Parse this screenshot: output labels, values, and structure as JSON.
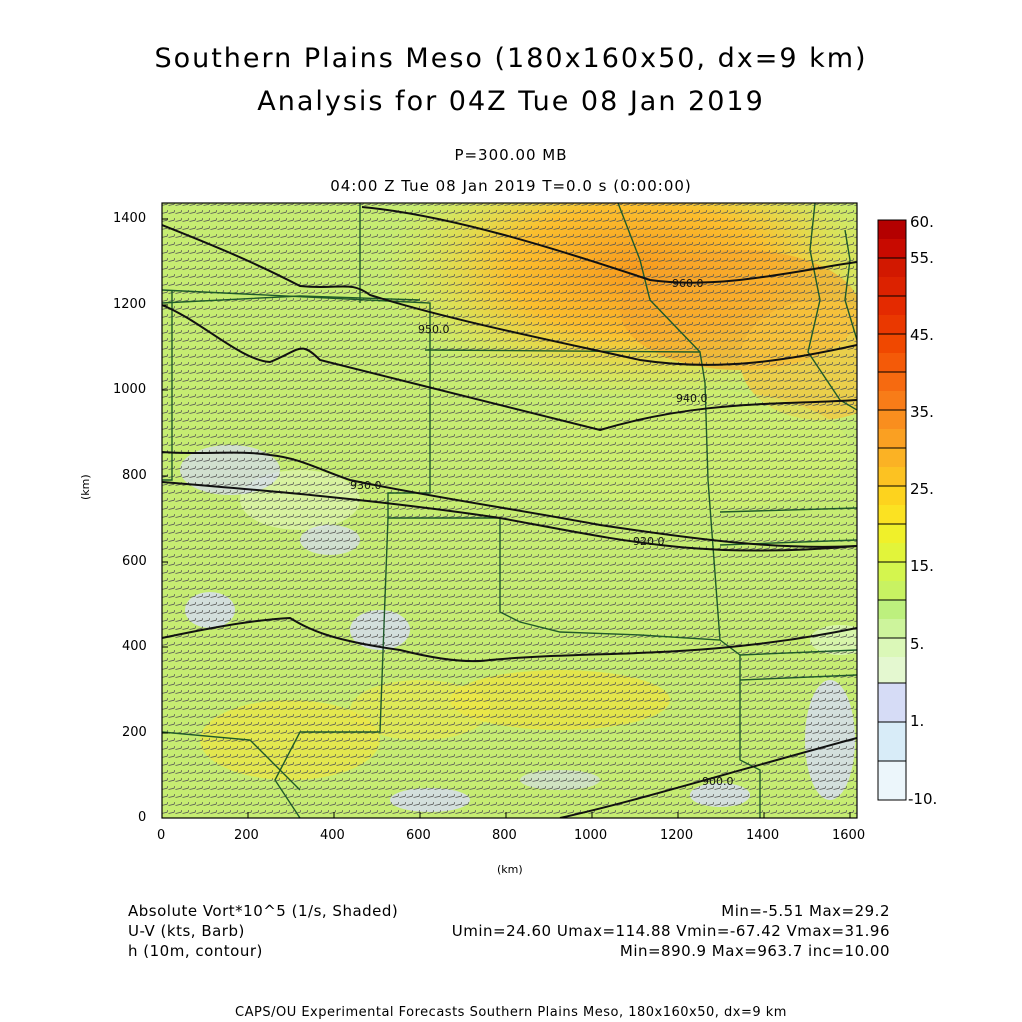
{
  "header": {
    "title_line1": "Southern Plains Meso (180x160x50, dx=9 km)",
    "title_line2": "Analysis for 04Z Tue 08 Jan 2019",
    "level": "P=300.00 MB",
    "time": "04:00 Z Tue 08 Jan 2019    T=0.0 s (0:00:00)"
  },
  "axes": {
    "x_label": "(km)",
    "y_label": "(km)",
    "x_ticks": [
      "0",
      "200",
      "400",
      "600",
      "800",
      "1000",
      "1200",
      "1400",
      "1600"
    ],
    "y_ticks": [
      "0",
      "200",
      "400",
      "600",
      "800",
      "1000",
      "1200",
      "1400"
    ],
    "x_range": [
      0,
      1620
    ],
    "y_range": [
      0,
      1440
    ]
  },
  "colorbar": {
    "labels": [
      "60.",
      "55.",
      "45.",
      "35.",
      "25.",
      "15.",
      "5.",
      "1.",
      "-10."
    ],
    "colors_top_to_bottom": [
      "#b40000",
      "#d21800",
      "#e42a00",
      "#f04800",
      "#f66a10",
      "#f98e1e",
      "#fbb224",
      "#fdd31e",
      "#f0f02a",
      "#d4f54e",
      "#bdf07e",
      "#dbf8b8",
      "#d6dcf6",
      "#d8ecf8",
      "#ecf6fb"
    ]
  },
  "map": {
    "contour_labels": [
      "900.0",
      "920.0",
      "930.0",
      "940.0",
      "950.0",
      "960.0"
    ]
  },
  "info": {
    "field1_name": "Absolute Vort*10^5 (1/s, Shaded)",
    "field1_stats": "Min=-5.51 Max=29.2",
    "field2_name": "U-V (kts, Barb)",
    "field2_stats": "Umin=24.60 Umax=114.88 Vmin=-67.42 Vmax=31.96",
    "field3_name": "h (10m, contour)",
    "field3_stats": "Min=890.9 Max=963.7 inc=10.00"
  },
  "footer": "CAPS/OU Experimental Forecasts  Southern Plains Meso, 180x160x50, dx=9 km"
}
